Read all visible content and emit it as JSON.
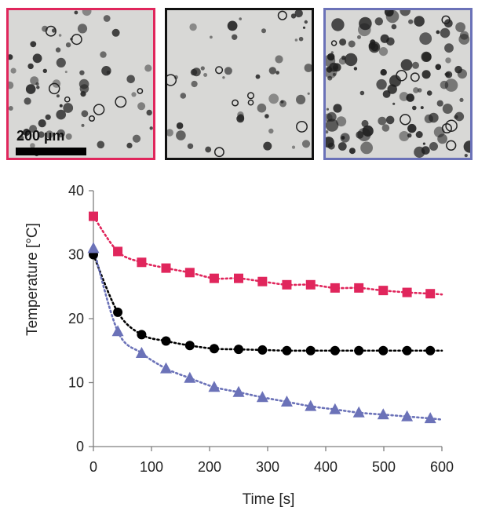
{
  "panels": [
    {
      "border_color": "#e0265c",
      "scale_label": "200 µm",
      "particle_density": "medium",
      "mark_color": "#2a2a2a"
    },
    {
      "border_color": "#111111",
      "particle_density": "sparse",
      "mark_color": "#2a2a2a"
    },
    {
      "border_color": "#6b72b8",
      "particle_density": "dense",
      "mark_color": "#1e1e1e"
    }
  ],
  "chart_data": {
    "type": "scatter",
    "title": "",
    "xlabel": "Time [s]",
    "ylabel": "Temperature [°C]",
    "xlim": [
      0,
      600
    ],
    "ylim": [
      0,
      40
    ],
    "xticks": [
      0,
      100,
      200,
      300,
      400,
      500,
      600
    ],
    "yticks": [
      0,
      10,
      20,
      30,
      40
    ],
    "grid": false,
    "legend": "none",
    "trendline_style": "dotted",
    "series": [
      {
        "marker": "square",
        "color": "#e0265c",
        "x": [
          0,
          42,
          83,
          125,
          166,
          208,
          250,
          291,
          333,
          374,
          416,
          457,
          499,
          540,
          580
        ],
        "y": [
          36.0,
          30.5,
          28.8,
          27.9,
          27.2,
          26.3,
          26.3,
          25.8,
          25.3,
          25.3,
          24.8,
          24.8,
          24.4,
          24.1,
          23.9
        ]
      },
      {
        "marker": "circle",
        "color": "#000000",
        "x": [
          0,
          42,
          83,
          125,
          166,
          208,
          250,
          291,
          333,
          374,
          416,
          457,
          499,
          540,
          580
        ],
        "y": [
          30.0,
          21.0,
          17.5,
          16.5,
          15.8,
          15.3,
          15.2,
          15.1,
          15.0,
          15.0,
          15.0,
          15.0,
          15.0,
          15.0,
          15.0
        ]
      },
      {
        "marker": "triangle",
        "color": "#6b72b8",
        "x": [
          0,
          42,
          83,
          125,
          166,
          208,
          250,
          291,
          333,
          374,
          416,
          457,
          499,
          540,
          580
        ],
        "y": [
          31.0,
          18.0,
          14.6,
          12.2,
          10.7,
          9.3,
          8.5,
          7.7,
          7.0,
          6.3,
          5.8,
          5.3,
          5.0,
          4.7,
          4.4
        ]
      }
    ]
  }
}
